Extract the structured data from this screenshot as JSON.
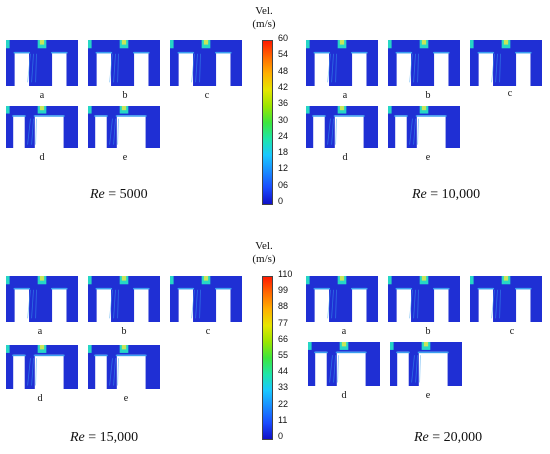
{
  "figure": {
    "top_colorbar": {
      "title": "Vel.",
      "unit": "(m/s)",
      "ticks": [
        "60",
        "54",
        "48",
        "42",
        "36",
        "30",
        "24",
        "18",
        "12",
        "06",
        "0"
      ]
    },
    "bottom_colorbar": {
      "title": "Vel.",
      "unit": "(m/s)",
      "ticks": [
        "110",
        "99",
        "88",
        "77",
        "66",
        "55",
        "44",
        "33",
        "22",
        "11",
        "0"
      ]
    },
    "panels": [
      {
        "re_label": "Re",
        "re_value": "= 5000",
        "cases": [
          "a",
          "b",
          "c",
          "d",
          "e"
        ]
      },
      {
        "re_label": "Re",
        "re_value": "= 10,000",
        "cases": [
          "a",
          "b",
          "c",
          "d",
          "e"
        ]
      },
      {
        "re_label": "Re",
        "re_value": "= 15,000",
        "cases": [
          "a",
          "b",
          "c",
          "d",
          "e"
        ]
      },
      {
        "re_label": "Re",
        "re_value": "= 20,000",
        "cases": [
          "a",
          "b",
          "c",
          "d",
          "e"
        ]
      }
    ],
    "colors": {
      "fluid": "#1f2fd4",
      "wall": "#ffffff",
      "jet": "#26d6c6",
      "jet_core": "#c8e65a",
      "edge": "#3aa0f0"
    }
  }
}
